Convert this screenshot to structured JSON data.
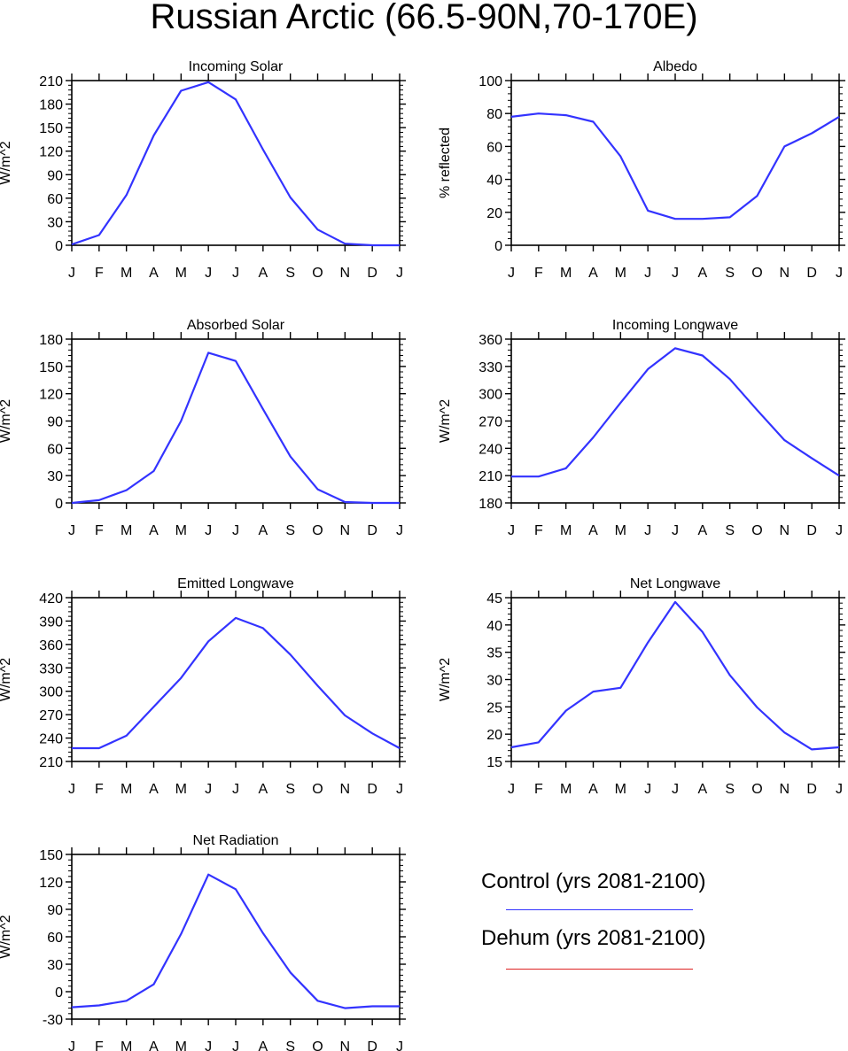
{
  "title": "Russian Arctic (66.5-90N,70-170E)",
  "colors": {
    "control": "#3333ff",
    "dehum": "#dd2222"
  },
  "legend": {
    "control_label": "Control (yrs 2081-2100)",
    "dehum_label": "Dehum (yrs 2081-2100)"
  },
  "chart_data": [
    {
      "type": "line",
      "title": "Incoming Solar",
      "ylabel": "W/m^2",
      "x": [
        "J",
        "F",
        "M",
        "A",
        "M",
        "J",
        "J",
        "A",
        "S",
        "O",
        "N",
        "D",
        "J"
      ],
      "ylim": [
        0,
        210
      ],
      "yticks": [
        0,
        30,
        60,
        90,
        120,
        150,
        180,
        210
      ],
      "series": [
        {
          "values": [
            1,
            13,
            64,
            140,
            197,
            208,
            186,
            122,
            61,
            20,
            2,
            0,
            0
          ]
        }
      ]
    },
    {
      "type": "line",
      "title": "Albedo",
      "ylabel": "% reflected",
      "x": [
        "J",
        "F",
        "M",
        "A",
        "M",
        "J",
        "J",
        "A",
        "S",
        "O",
        "N",
        "D",
        "J"
      ],
      "ylim": [
        0,
        100
      ],
      "yticks": [
        0,
        20,
        40,
        60,
        80,
        100
      ],
      "series": [
        {
          "values": [
            78,
            80,
            79,
            75,
            54,
            21,
            16,
            16,
            17,
            30,
            60,
            68,
            78
          ]
        }
      ]
    },
    {
      "type": "line",
      "title": "Absorbed Solar",
      "ylabel": "W/m^2",
      "x": [
        "J",
        "F",
        "M",
        "A",
        "M",
        "J",
        "J",
        "A",
        "S",
        "O",
        "N",
        "D",
        "J"
      ],
      "ylim": [
        0,
        180
      ],
      "yticks": [
        0,
        30,
        60,
        90,
        120,
        150,
        180
      ],
      "series": [
        {
          "values": [
            0,
            3,
            14,
            35,
            90,
            165,
            156,
            103,
            51,
            15,
            1,
            0,
            0
          ]
        }
      ]
    },
    {
      "type": "line",
      "title": "Incoming Longwave",
      "ylabel": "W/m^2",
      "x": [
        "J",
        "F",
        "M",
        "A",
        "M",
        "J",
        "J",
        "A",
        "S",
        "O",
        "N",
        "D",
        "J"
      ],
      "ylim": [
        180,
        360
      ],
      "yticks": [
        180,
        210,
        240,
        270,
        300,
        330,
        360
      ],
      "series": [
        {
          "values": [
            209,
            209,
            218,
            252,
            290,
            327,
            350,
            342,
            316,
            282,
            249,
            229,
            210
          ]
        }
      ]
    },
    {
      "type": "line",
      "title": "Emitted Longwave",
      "ylabel": "W/m^2",
      "x": [
        "J",
        "F",
        "M",
        "A",
        "M",
        "J",
        "J",
        "A",
        "S",
        "O",
        "N",
        "D",
        "J"
      ],
      "ylim": [
        210,
        420
      ],
      "yticks": [
        210,
        240,
        270,
        300,
        330,
        360,
        390,
        420
      ],
      "series": [
        {
          "values": [
            227,
            227,
            243,
            280,
            317,
            364,
            394,
            381,
            347,
            307,
            269,
            246,
            227
          ]
        }
      ]
    },
    {
      "type": "line",
      "title": "Net Longwave",
      "ylabel": "W/m^2",
      "x": [
        "J",
        "F",
        "M",
        "A",
        "M",
        "J",
        "J",
        "A",
        "S",
        "O",
        "N",
        "D",
        "J"
      ],
      "ylim": [
        15,
        45
      ],
      "yticks": [
        15,
        20,
        25,
        30,
        35,
        40,
        45
      ],
      "series": [
        {
          "values": [
            17.6,
            18.5,
            24.3,
            27.8,
            28.5,
            36.8,
            44.2,
            38.7,
            30.8,
            24.9,
            20.3,
            17.2,
            17.6
          ]
        }
      ]
    },
    {
      "type": "line",
      "title": "Net Radiation",
      "ylabel": "W/m^2",
      "x": [
        "J",
        "F",
        "M",
        "A",
        "M",
        "J",
        "J",
        "A",
        "S",
        "O",
        "N",
        "D",
        "J"
      ],
      "ylim": [
        -30,
        150
      ],
      "yticks": [
        -30,
        0,
        30,
        60,
        90,
        120,
        150
      ],
      "series": [
        {
          "values": [
            -17,
            -15,
            -10,
            8,
            63,
            128,
            112,
            64,
            21,
            -10,
            -18,
            -16,
            -16
          ]
        }
      ]
    }
  ]
}
